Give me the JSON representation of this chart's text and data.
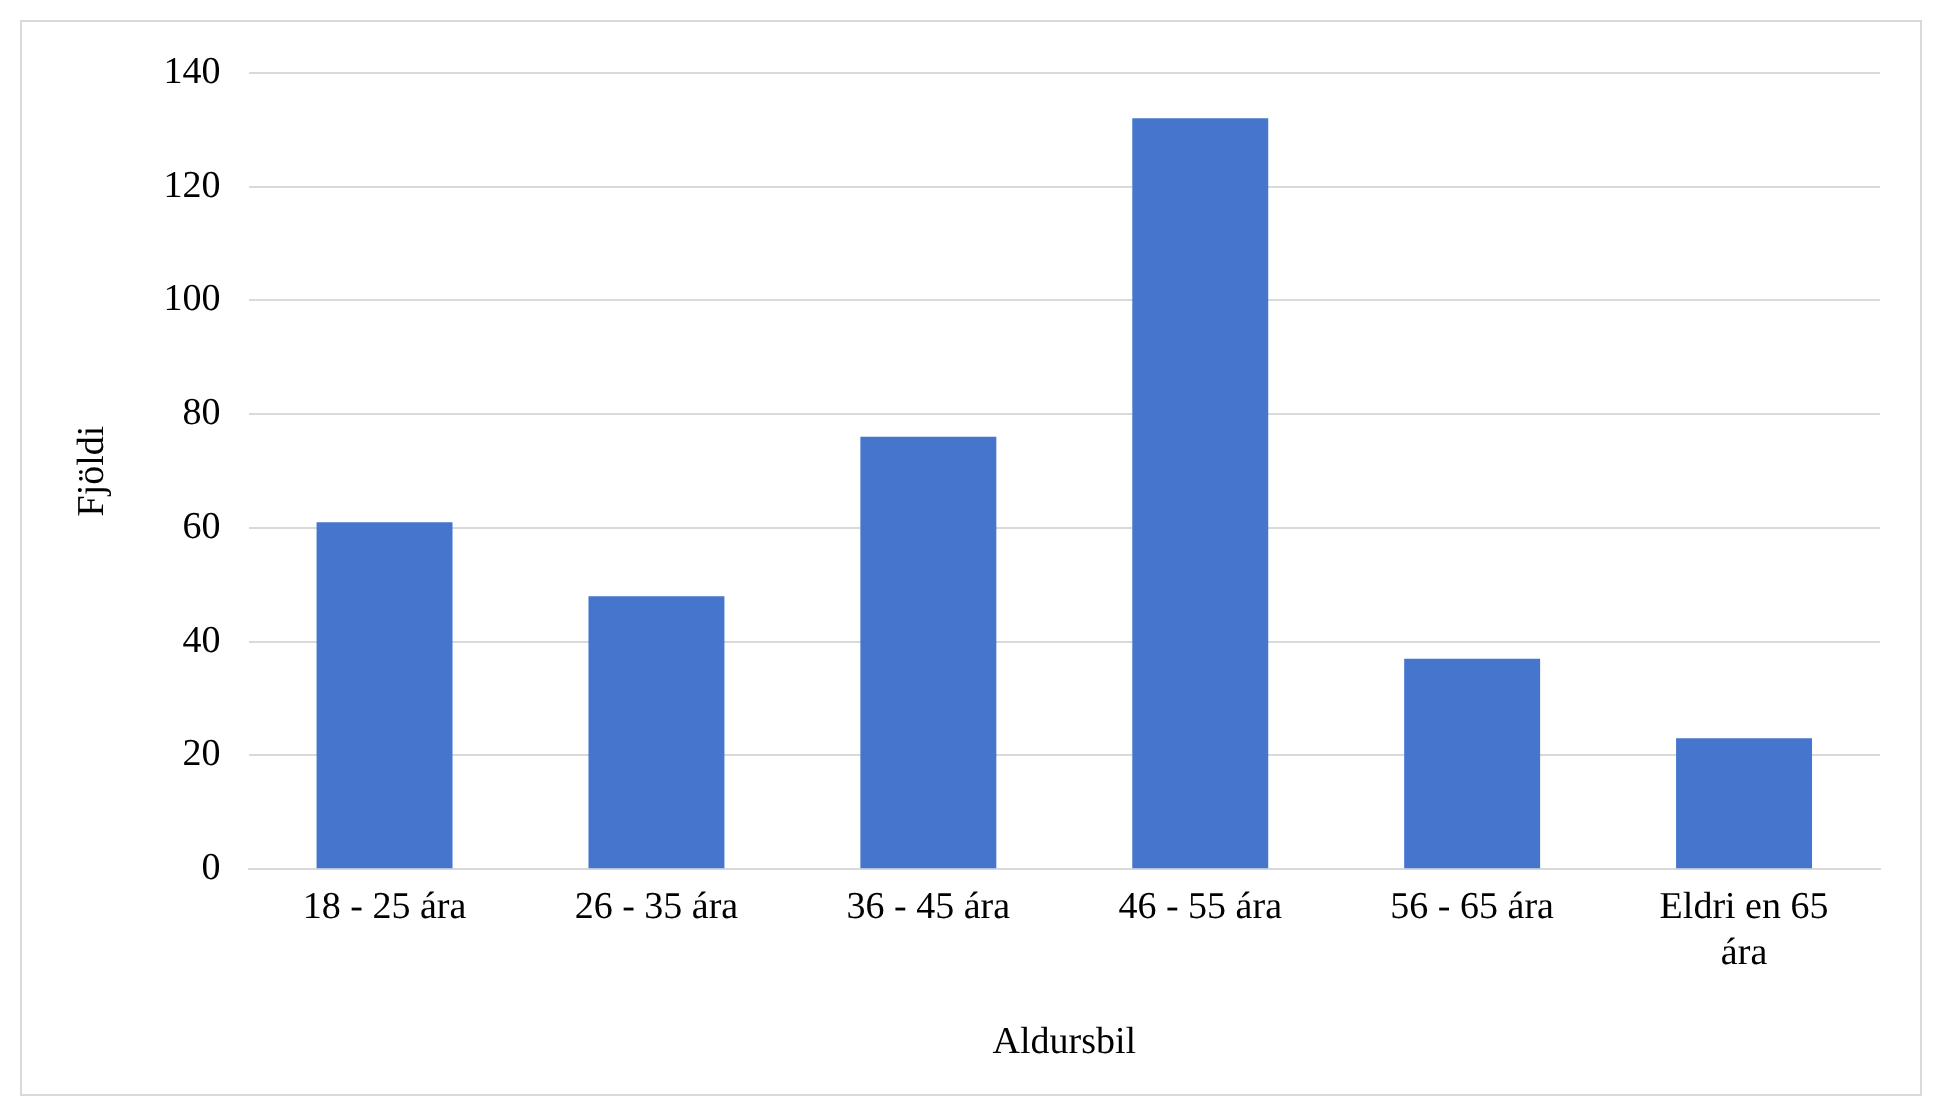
{
  "chart_data": {
    "type": "bar",
    "xlabel": "Aldursbil",
    "ylabel": "Fjöldi",
    "categories": [
      "18 - 25 ára",
      "26 - 35 ára",
      "36 - 45 ára",
      "46 - 55 ára",
      "56 - 65 ára",
      "Eldri en 65 ára"
    ],
    "values": [
      61,
      48,
      76,
      132,
      37,
      23
    ],
    "color": "#4575cc",
    "ylim": [
      0,
      140
    ],
    "yticks": [
      0,
      20,
      40,
      60,
      80,
      100,
      120,
      140
    ],
    "grid": "y",
    "legend": false
  }
}
